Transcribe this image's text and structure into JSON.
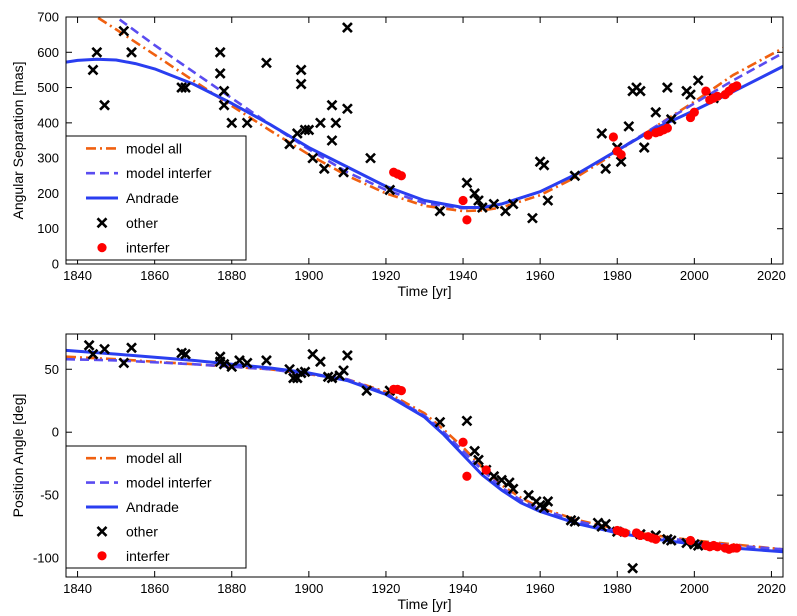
{
  "chart_data": [
    {
      "type": "scatter",
      "xlabel": "Time [yr]",
      "ylabel": "Angular Separation [mas]",
      "xlim": [
        1837,
        2023
      ],
      "ylim": [
        0,
        700
      ],
      "xticks": [
        1840,
        1860,
        1880,
        1900,
        1920,
        1940,
        1960,
        1980,
        2000,
        2020
      ],
      "yticks": [
        0,
        100,
        200,
        300,
        400,
        500,
        600,
        700
      ],
      "legend": {
        "position": "bottom-left",
        "entries": [
          "model all",
          "model interfer",
          "Andrade",
          "other",
          "interfer"
        ]
      },
      "series": [
        {
          "name": "model all",
          "kind": "line",
          "style": "dash-dot",
          "color": "#f06010",
          "x": [
            1837,
            1845,
            1850,
            1860,
            1870,
            1880,
            1890,
            1900,
            1910,
            1920,
            1930,
            1940,
            1945,
            1950,
            1960,
            1970,
            1980,
            1990,
            2000,
            2010,
            2023
          ],
          "y": [
            765,
            700,
            665,
            593,
            520,
            448,
            378,
            310,
            250,
            200,
            165,
            150,
            152,
            160,
            195,
            250,
            318,
            390,
            460,
            535,
            612
          ]
        },
        {
          "name": "model interfer",
          "kind": "line",
          "style": "dashed",
          "color": "#5a4cf0",
          "x": [
            1837,
            1845,
            1850,
            1860,
            1870,
            1880,
            1890,
            1900,
            1910,
            1920,
            1930,
            1940,
            1945,
            1950,
            1960,
            1970,
            1980,
            1990,
            2000,
            2010,
            2023
          ],
          "y": [
            820,
            750,
            700,
            620,
            545,
            470,
            395,
            325,
            260,
            210,
            172,
            158,
            160,
            170,
            205,
            258,
            322,
            390,
            455,
            520,
            598
          ]
        },
        {
          "name": "Andrade",
          "kind": "line",
          "style": "solid",
          "color": "#2a3ef0",
          "x": [
            1837,
            1840,
            1845,
            1850,
            1855,
            1860,
            1870,
            1880,
            1890,
            1900,
            1910,
            1920,
            1930,
            1940,
            1945,
            1950,
            1960,
            1970,
            1980,
            1990,
            2000,
            2010,
            2023
          ],
          "y": [
            572,
            577,
            580,
            578,
            568,
            553,
            510,
            455,
            395,
            330,
            275,
            220,
            180,
            160,
            160,
            170,
            205,
            258,
            322,
            385,
            435,
            488,
            560
          ]
        },
        {
          "name": "other",
          "kind": "scatter",
          "marker": "x",
          "color": "#000000",
          "x": [
            1844,
            1845,
            1847,
            1852,
            1854,
            1867,
            1868,
            1877,
            1877,
            1878,
            1878,
            1880,
            1884,
            1889,
            1895,
            1897,
            1898,
            1898,
            1899,
            1900,
            1901,
            1903,
            1904,
            1906,
            1906,
            1907,
            1909,
            1910,
            1910,
            1916,
            1921,
            1934,
            1941,
            1943,
            1944,
            1945,
            1948,
            1951,
            1953,
            1958,
            1960,
            1961,
            1962,
            1969,
            1976,
            1977,
            1980,
            1981,
            1983,
            1984,
            1985,
            1986,
            1987,
            1990,
            1993,
            1994,
            1998,
            1999,
            2001,
            2005
          ],
          "y": [
            550,
            600,
            450,
            660,
            600,
            500,
            500,
            540,
            600,
            490,
            450,
            400,
            400,
            570,
            340,
            370,
            550,
            510,
            380,
            380,
            300,
            400,
            270,
            350,
            450,
            400,
            260,
            670,
            440,
            300,
            210,
            150,
            230,
            200,
            180,
            160,
            170,
            150,
            170,
            130,
            290,
            280,
            180,
            250,
            370,
            270,
            330,
            290,
            390,
            490,
            500,
            490,
            330,
            430,
            500,
            410,
            490,
            480,
            520,
            470
          ]
        },
        {
          "name": "interfer",
          "kind": "scatter",
          "marker": "dot",
          "color": "#ff0000",
          "x": [
            1922,
            1923,
            1924,
            1940,
            1941,
            1979,
            1980,
            1981,
            1988,
            1990,
            1991,
            1992,
            1993,
            1999,
            2000,
            2003,
            2004,
            2005,
            2006,
            2008,
            2009,
            2010,
            2011
          ],
          "y": [
            260,
            255,
            250,
            180,
            125,
            360,
            320,
            310,
            365,
            372,
            375,
            380,
            385,
            415,
            430,
            490,
            465,
            470,
            475,
            480,
            490,
            500,
            505
          ]
        }
      ]
    },
    {
      "type": "scatter",
      "xlabel": "Time [yr]",
      "ylabel": "Position Angle [deg]",
      "xlim": [
        1837,
        2023
      ],
      "ylim": [
        -115,
        78
      ],
      "xticks": [
        1840,
        1860,
        1880,
        1900,
        1920,
        1940,
        1960,
        1980,
        2000,
        2020
      ],
      "yticks": [
        -100,
        -50,
        0,
        50
      ],
      "legend": {
        "position": "bottom-left",
        "entries": [
          "model all",
          "model interfer",
          "Andrade",
          "other",
          "interfer"
        ]
      },
      "series": [
        {
          "name": "model all",
          "kind": "line",
          "style": "dash-dot",
          "color": "#f06010",
          "x": [
            1837,
            1850,
            1870,
            1890,
            1900,
            1910,
            1920,
            1930,
            1935,
            1940,
            1945,
            1950,
            1955,
            1960,
            1970,
            1980,
            1990,
            2000,
            2010,
            2023
          ],
          "y": [
            60,
            58,
            54,
            50,
            46,
            42,
            32,
            15,
            2,
            -12,
            -28,
            -42,
            -52,
            -60,
            -70,
            -77,
            -82,
            -86,
            -89,
            -93
          ]
        },
        {
          "name": "model interfer",
          "kind": "line",
          "style": "dashed",
          "color": "#5a4cf0",
          "x": [
            1837,
            1850,
            1870,
            1890,
            1900,
            1910,
            1920,
            1930,
            1935,
            1940,
            1945,
            1950,
            1955,
            1960,
            1970,
            1980,
            1990,
            2000,
            2010,
            2023
          ],
          "y": [
            58,
            57,
            54,
            50,
            46,
            42,
            31,
            13,
            0,
            -15,
            -30,
            -44,
            -54,
            -61,
            -71,
            -78,
            -83,
            -87,
            -90,
            -93
          ]
        },
        {
          "name": "Andrade",
          "kind": "line",
          "style": "solid",
          "color": "#2a3ef0",
          "x": [
            1837,
            1850,
            1870,
            1890,
            1900,
            1910,
            1920,
            1930,
            1935,
            1940,
            1945,
            1950,
            1955,
            1960,
            1970,
            1980,
            1990,
            2000,
            2010,
            2023
          ],
          "y": [
            65,
            62,
            57,
            51,
            47,
            41,
            30,
            12,
            -2,
            -18,
            -34,
            -46,
            -56,
            -63,
            -73,
            -80,
            -85,
            -89,
            -92,
            -95
          ]
        },
        {
          "name": "other",
          "kind": "scatter",
          "marker": "x",
          "color": "#000000",
          "x": [
            1843,
            1844,
            1847,
            1852,
            1854,
            1867,
            1868,
            1877,
            1877,
            1878,
            1880,
            1882,
            1884,
            1889,
            1895,
            1896,
            1897,
            1898,
            1899,
            1901,
            1903,
            1905,
            1906,
            1908,
            1909,
            1910,
            1915,
            1921,
            1934,
            1941,
            1943,
            1944,
            1946,
            1948,
            1950,
            1952,
            1953,
            1957,
            1959,
            1960,
            1961,
            1962,
            1968,
            1969,
            1975,
            1976,
            1977,
            1980,
            1984,
            1986,
            1990,
            1993,
            1994,
            1998,
            2000,
            2001
          ],
          "y": [
            69,
            62,
            66,
            55,
            67,
            63,
            62,
            60,
            56,
            54,
            52,
            57,
            55,
            57,
            50,
            43,
            43,
            47,
            48,
            62,
            56,
            44,
            43,
            45,
            49,
            61,
            33,
            33,
            8,
            9,
            -15,
            -22,
            -30,
            -35,
            -38,
            -40,
            -45,
            -50,
            -55,
            -58,
            -60,
            -55,
            -70,
            -71,
            -72,
            -75,
            -73,
            -79,
            -108,
            -81,
            -82,
            -85,
            -86,
            -88,
            -89,
            -90
          ]
        },
        {
          "name": "interfer",
          "kind": "scatter",
          "marker": "dot",
          "color": "#ff0000",
          "x": [
            1922,
            1923,
            1924,
            1940,
            1941,
            1946,
            1980,
            1981,
            1982,
            1985,
            1986,
            1988,
            1989,
            1990,
            1999,
            2003,
            2004,
            2005,
            2006,
            2008,
            2009,
            2010,
            2011
          ],
          "y": [
            34,
            34,
            33,
            -8,
            -35,
            -30,
            -78,
            -79,
            -80,
            -80,
            -82,
            -83,
            -84,
            -85,
            -86,
            -90,
            -91,
            -90,
            -91,
            -92,
            -93,
            -92,
            -92
          ]
        }
      ]
    }
  ]
}
